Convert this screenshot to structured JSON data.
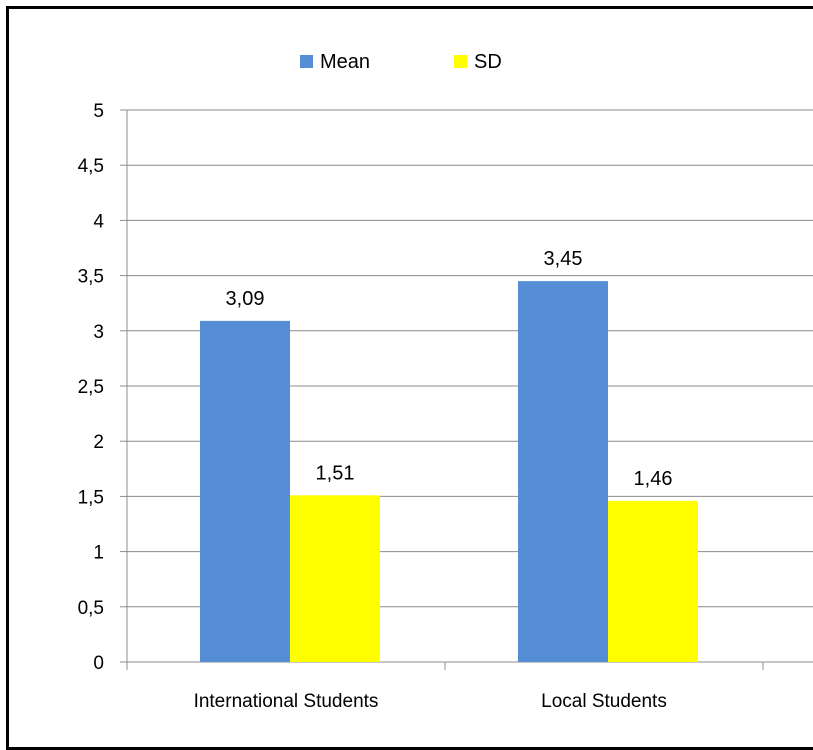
{
  "chart_data": {
    "type": "bar",
    "categories": [
      "International Students",
      "Local Students"
    ],
    "series": [
      {
        "name": "Mean",
        "values": [
          3.09,
          3.45
        ],
        "labels": [
          "3,09",
          "3,45"
        ],
        "color": "#558ED5"
      },
      {
        "name": "SD",
        "values": [
          1.51,
          1.46
        ],
        "labels": [
          "1,51",
          "1,46"
        ],
        "color": "#FFFF00"
      }
    ],
    "yticks": [
      0,
      0.5,
      1,
      1.5,
      2,
      2.5,
      3,
      3.5,
      4,
      4.5,
      5
    ],
    "ytick_labels": [
      "0",
      "0,5",
      "1",
      "1,5",
      "2",
      "2,5",
      "3",
      "3,5",
      "4",
      "4,5",
      "5"
    ],
    "ylim": [
      0,
      5
    ],
    "title": "",
    "xlabel": "",
    "ylabel": "",
    "grid": true,
    "legend_position": "top-center"
  }
}
